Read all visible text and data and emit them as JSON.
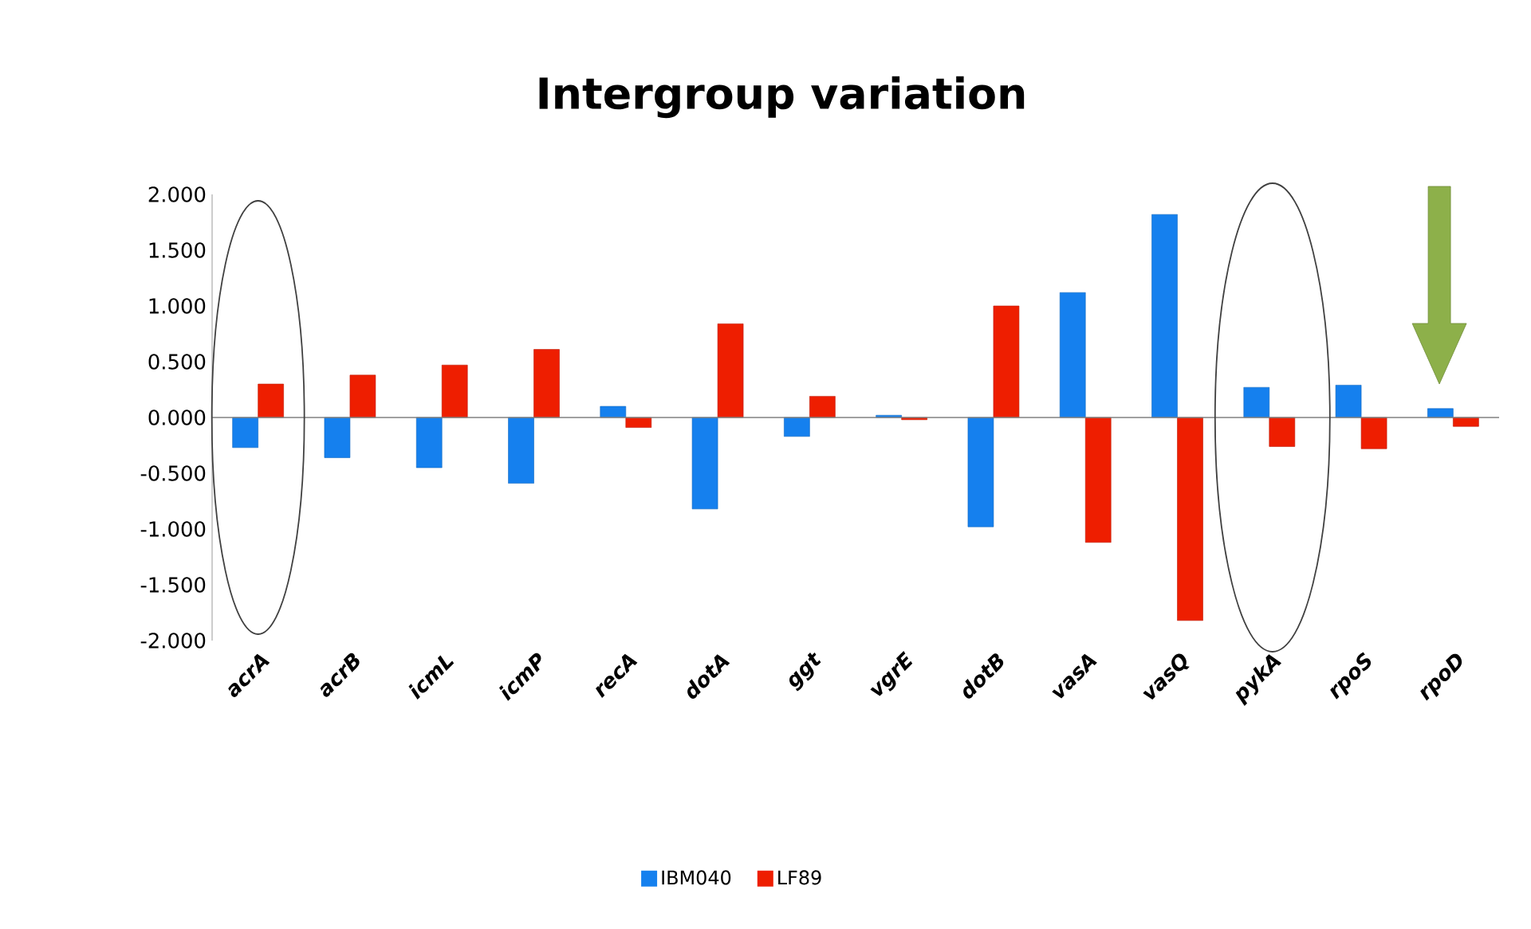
{
  "chart_data": {
    "type": "bar",
    "title": "Intergroup variation",
    "categories": [
      "acrA",
      "acrB",
      "icmL",
      "icmP",
      "recA",
      "dotA",
      "ggt",
      "vgrE",
      "dotB",
      "vasA",
      "vasQ",
      "pykA",
      "rpoS",
      "rpoD"
    ],
    "series": [
      {
        "name": "IBM040",
        "color": "#1580ee",
        "values": [
          -0.27,
          -0.36,
          -0.45,
          -0.59,
          0.1,
          -0.82,
          -0.17,
          0.02,
          -0.98,
          1.12,
          1.82,
          0.27,
          0.29,
          0.08
        ]
      },
      {
        "name": "LF89",
        "color": "#ee1e00",
        "values": [
          0.3,
          0.38,
          0.47,
          0.61,
          -0.09,
          0.84,
          0.19,
          -0.02,
          1.0,
          -1.12,
          -1.82,
          -0.26,
          -0.28,
          -0.08
        ]
      }
    ],
    "ylim": [
      -2,
      2
    ],
    "yticks": [
      {
        "value": -2,
        "label": "-2.000"
      },
      {
        "value": -1.5,
        "label": "-1.500"
      },
      {
        "value": -1,
        "label": "-1.000"
      },
      {
        "value": -0.5,
        "label": "-0.500"
      },
      {
        "value": 0,
        "label": "0.000"
      },
      {
        "value": 0.5,
        "label": "0.500"
      },
      {
        "value": 1,
        "label": "1.000"
      },
      {
        "value": 1.5,
        "label": "1.500"
      },
      {
        "value": 2,
        "label": "2.000"
      }
    ],
    "legend": "bottom"
  }
}
